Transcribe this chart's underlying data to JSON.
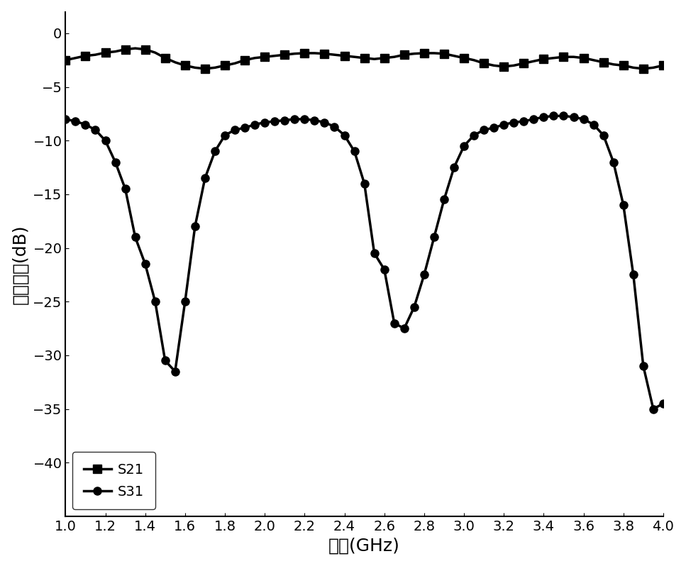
{
  "title": "",
  "xlabel": "频率(GHz)",
  "ylabel": "插入损耗(dB)",
  "xlim": [
    1.0,
    4.0
  ],
  "ylim": [
    -45,
    2
  ],
  "xticks": [
    1.0,
    1.2,
    1.4,
    1.6,
    1.8,
    2.0,
    2.2,
    2.4,
    2.6,
    2.8,
    3.0,
    3.2,
    3.4,
    3.6,
    3.8,
    4.0
  ],
  "yticks": [
    0,
    -5,
    -10,
    -15,
    -20,
    -25,
    -30,
    -35,
    -40
  ],
  "line_color": "#000000",
  "marker_color": "#000000",
  "background_color": "#ffffff",
  "legend_labels": [
    "S21",
    "S31"
  ],
  "legend_markers": [
    "s",
    "o"
  ],
  "s21_x": [
    1.0,
    1.05,
    1.1,
    1.15,
    1.2,
    1.25,
    1.3,
    1.35,
    1.4,
    1.45,
    1.5,
    1.55,
    1.6,
    1.65,
    1.7,
    1.75,
    1.8,
    1.85,
    1.9,
    1.95,
    2.0,
    2.05,
    2.1,
    2.15,
    2.2,
    2.25,
    2.3,
    2.35,
    2.4,
    2.45,
    2.5,
    2.55,
    2.6,
    2.65,
    2.7,
    2.75,
    2.8,
    2.85,
    2.9,
    2.95,
    3.0,
    3.05,
    3.1,
    3.15,
    3.2,
    3.25,
    3.3,
    3.35,
    3.4,
    3.45,
    3.5,
    3.55,
    3.6,
    3.65,
    3.7,
    3.75,
    3.8,
    3.85,
    3.9,
    3.95,
    4.0
  ],
  "s21_y": [
    -2.5,
    -2.3,
    -2.1,
    -2.0,
    -1.8,
    -1.7,
    -1.5,
    -1.4,
    -1.5,
    -1.8,
    -2.3,
    -2.7,
    -3.0,
    -3.2,
    -3.3,
    -3.2,
    -3.0,
    -2.8,
    -2.5,
    -2.3,
    -2.2,
    -2.1,
    -2.0,
    -1.9,
    -1.85,
    -1.85,
    -1.9,
    -2.0,
    -2.1,
    -2.2,
    -2.3,
    -2.4,
    -2.3,
    -2.2,
    -2.0,
    -1.9,
    -1.85,
    -1.85,
    -1.9,
    -2.1,
    -2.3,
    -2.5,
    -2.8,
    -3.0,
    -3.1,
    -3.0,
    -2.8,
    -2.6,
    -2.4,
    -2.3,
    -2.2,
    -2.2,
    -2.3,
    -2.5,
    -2.7,
    -2.9,
    -3.0,
    -3.2,
    -3.3,
    -3.2,
    -3.0
  ],
  "s31_x": [
    1.0,
    1.05,
    1.1,
    1.15,
    1.2,
    1.25,
    1.3,
    1.35,
    1.4,
    1.45,
    1.5,
    1.55,
    1.6,
    1.65,
    1.7,
    1.75,
    1.8,
    1.85,
    1.9,
    1.95,
    2.0,
    2.05,
    2.1,
    2.15,
    2.2,
    2.25,
    2.3,
    2.35,
    2.4,
    2.45,
    2.5,
    2.55,
    2.6,
    2.65,
    2.7,
    2.75,
    2.8,
    2.85,
    2.9,
    2.95,
    3.0,
    3.05,
    3.1,
    3.15,
    3.2,
    3.25,
    3.3,
    3.35,
    3.4,
    3.45,
    3.5,
    3.55,
    3.6,
    3.65,
    3.7,
    3.75,
    3.8,
    3.85,
    3.9,
    3.95,
    4.0
  ],
  "s31_y": [
    -8.0,
    -8.2,
    -8.5,
    -9.0,
    -10.0,
    -12.0,
    -14.5,
    -19.0,
    -21.5,
    -25.0,
    -30.5,
    -31.5,
    -25.0,
    -18.0,
    -13.5,
    -11.0,
    -9.5,
    -9.0,
    -8.8,
    -8.5,
    -8.3,
    -8.2,
    -8.1,
    -8.0,
    -8.0,
    -8.1,
    -8.3,
    -8.7,
    -9.5,
    -11.0,
    -14.0,
    -20.5,
    -22.0,
    -27.0,
    -27.5,
    -25.5,
    -22.5,
    -19.0,
    -15.5,
    -12.5,
    -10.5,
    -9.5,
    -9.0,
    -8.8,
    -8.5,
    -8.3,
    -8.2,
    -8.0,
    -7.8,
    -7.7,
    -7.7,
    -7.8,
    -8.0,
    -8.5,
    -9.5,
    -12.0,
    -16.0,
    -22.5,
    -31.0,
    -35.0,
    -34.5
  ]
}
